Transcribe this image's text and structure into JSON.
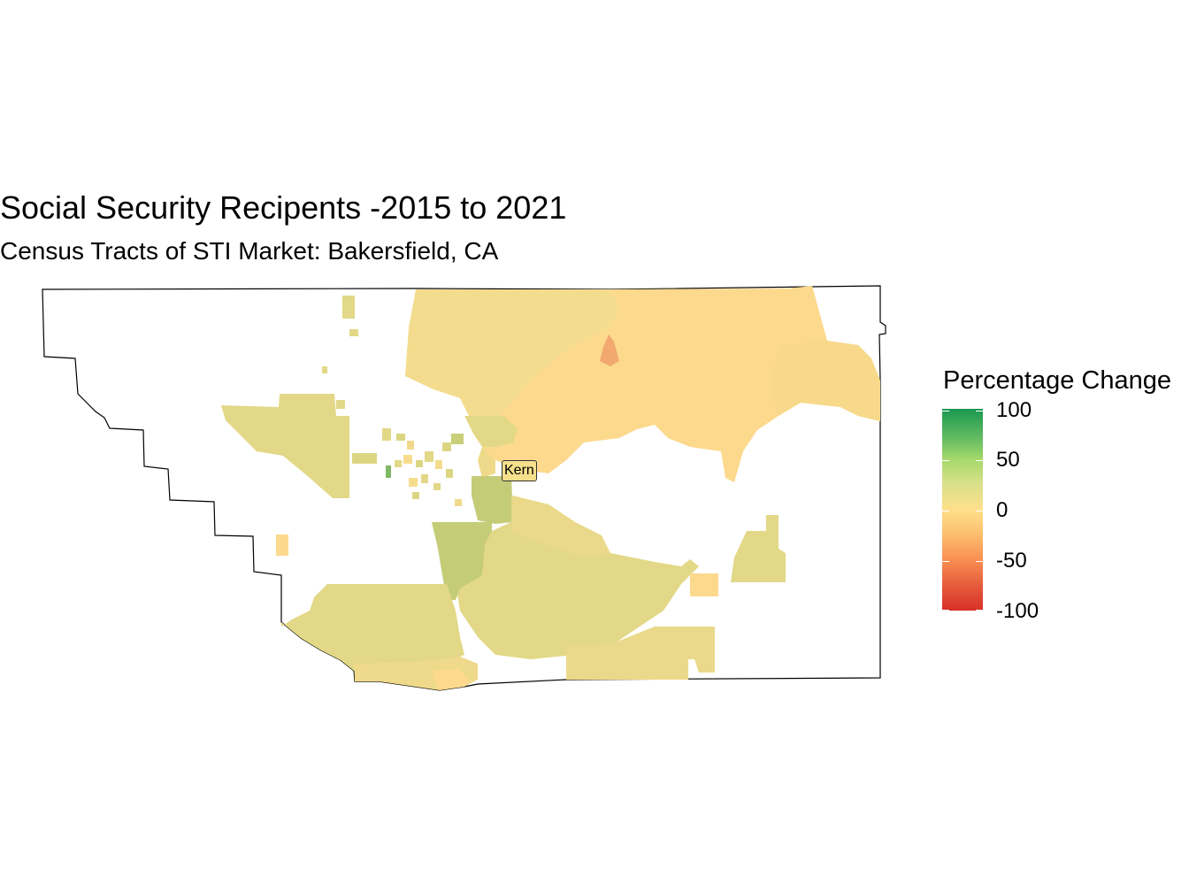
{
  "title": "Social Security Recipents -2015 to 2021",
  "subtitle": "Census Tracts of STI Market: Bakersfield, CA",
  "legend": {
    "title": "Percentage Change",
    "min": -100,
    "max": 100,
    "labels": [
      "100",
      "50",
      "0",
      "-50",
      "-100"
    ],
    "colors": {
      "high": "#1a9850",
      "mid": "#fee08b",
      "low": "#d73027"
    }
  },
  "map": {
    "county_label": "Kern"
  }
}
